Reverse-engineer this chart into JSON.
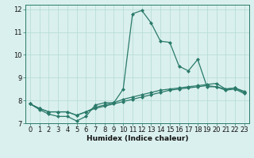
{
  "xlabel": "Humidex (Indice chaleur)",
  "x": [
    0,
    1,
    2,
    3,
    4,
    5,
    6,
    7,
    8,
    9,
    10,
    11,
    12,
    13,
    14,
    15,
    16,
    17,
    18,
    19,
    20,
    21,
    22,
    23
  ],
  "line1": [
    7.85,
    7.6,
    7.4,
    7.3,
    7.3,
    7.1,
    7.3,
    7.8,
    7.9,
    7.9,
    8.5,
    11.8,
    11.95,
    11.4,
    10.6,
    10.55,
    9.5,
    9.3,
    9.8,
    8.6,
    8.6,
    8.5,
    8.55,
    8.4
  ],
  "line2": [
    7.85,
    7.65,
    7.5,
    7.5,
    7.5,
    7.35,
    7.5,
    7.7,
    7.8,
    7.9,
    8.05,
    8.15,
    8.25,
    8.35,
    8.45,
    8.5,
    8.55,
    8.6,
    8.65,
    8.7,
    8.75,
    8.5,
    8.55,
    8.35
  ],
  "line3": [
    7.85,
    7.65,
    7.5,
    7.5,
    7.5,
    7.35,
    7.5,
    7.65,
    7.75,
    7.85,
    7.95,
    8.05,
    8.15,
    8.25,
    8.35,
    8.45,
    8.5,
    8.55,
    8.6,
    8.65,
    8.6,
    8.45,
    8.5,
    8.3
  ],
  "line_color": "#2a7a6a",
  "bg_color": "#daf0ee",
  "grid_color": "#b8ddd8",
  "ylim": [
    7.0,
    12.2
  ],
  "yticks": [
    7,
    8,
    9,
    10,
    11,
    12
  ],
  "xticks": [
    0,
    1,
    2,
    3,
    4,
    5,
    6,
    7,
    8,
    9,
    10,
    11,
    12,
    13,
    14,
    15,
    16,
    17,
    18,
    19,
    20,
    21,
    22,
    23
  ],
  "marker": "D",
  "markersize": 2.0,
  "linewidth": 0.9,
  "tick_fontsize": 6.0,
  "xlabel_fontsize": 6.5
}
